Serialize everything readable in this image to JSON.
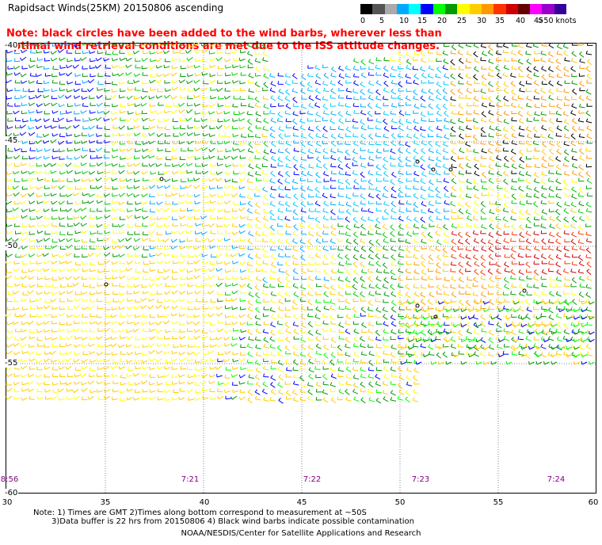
{
  "title": "Rapidsact Winds(25KM) 20150806 ascending",
  "note": "Note: black circles have been added to the wind barbs, wherever less than optimal wind retrieval conditions are met due to the ISS attitude changes.",
  "legend": {
    "colors": [
      "#000000",
      "#555555",
      "#aaaaaa",
      "#00aaff",
      "#00ffff",
      "#0000ff",
      "#00ff00",
      "#009900",
      "#ffff00",
      "#ffcc00",
      "#ff9900",
      "#ff3300",
      "#cc0000",
      "#660000",
      "#ff00ff",
      "#9900cc",
      "#330099"
    ],
    "labels": [
      "0",
      "5",
      "10",
      "15",
      "20",
      "25",
      "30",
      "35",
      "40",
      "45",
      ">50 knots"
    ]
  },
  "y_labels": [
    "-40",
    "-45",
    "-50",
    "-55",
    "-60"
  ],
  "x_labels": [
    "30",
    "35",
    "40",
    "45",
    "50",
    "55",
    "60"
  ],
  "times": [
    "8:56",
    "7:21",
    "7:22",
    "7:23",
    "7:24"
  ],
  "footnote_line1": "Note: 1) Times are GMT 2)Times along bottom correspond to measurement at ~50S",
  "footnote_line2": "3)Data buffer is 22 hrs from 20150806 4) Black wind barbs indicate possible contamination",
  "credit": "NOAA/NESDIS/Center for Satellite Applications and Research"
}
